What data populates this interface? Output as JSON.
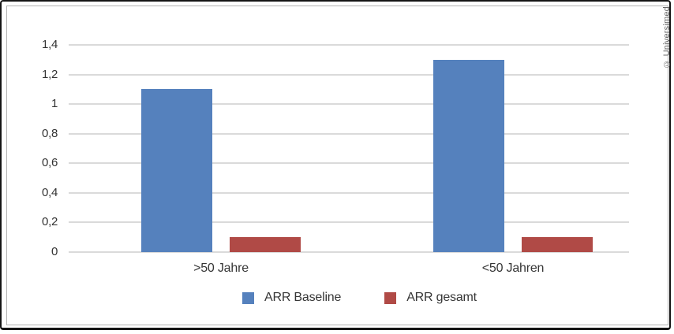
{
  "frame": {
    "copyright": "© Universimed"
  },
  "colors": {
    "series_blue": "#5581BD",
    "series_red": "#B04A46",
    "gridline": "#DADADA",
    "axis_text": "#333333",
    "inner_border": "#B3B3B3",
    "outer_frame": "#151515",
    "copyright_text": "#6A6A6A"
  },
  "chart_data": {
    "type": "bar",
    "title": "",
    "xlabel": "",
    "ylabel": "",
    "categories": [
      ">50 Jahre",
      "<50 Jahren"
    ],
    "series": [
      {
        "name": "ARR Baseline",
        "color": "#5581BD",
        "values": [
          1.1,
          1.3
        ]
      },
      {
        "name": "ARR gesamt",
        "color": "#B04A46",
        "values": [
          0.1,
          0.1
        ]
      }
    ],
    "ylim": [
      0,
      1.4
    ],
    "ytick_step": 0.2,
    "ytick_labels": [
      "0",
      "0,2",
      "0,4",
      "0,6",
      "0,8",
      "1",
      "1,2",
      "1,4"
    ],
    "decimal_separator": ",",
    "grid": true,
    "legend_position": "bottom"
  }
}
